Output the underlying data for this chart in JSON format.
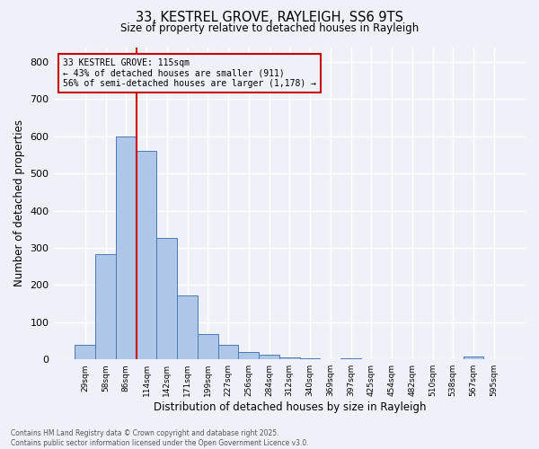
{
  "title1": "33, KESTREL GROVE, RAYLEIGH, SS6 9TS",
  "title2": "Size of property relative to detached houses in Rayleigh",
  "xlabel": "Distribution of detached houses by size in Rayleigh",
  "ylabel": "Number of detached properties",
  "bar_values": [
    38,
    282,
    600,
    560,
    327,
    172,
    68,
    38,
    20,
    12,
    5,
    3,
    0,
    2,
    0,
    0,
    0,
    0,
    0,
    7,
    0
  ],
  "bar_labels": [
    "29sqm",
    "58sqm",
    "86sqm",
    "114sqm",
    "142sqm",
    "171sqm",
    "199sqm",
    "227sqm",
    "256sqm",
    "284sqm",
    "312sqm",
    "340sqm",
    "369sqm",
    "397sqm",
    "425sqm",
    "454sqm",
    "482sqm",
    "510sqm",
    "538sqm",
    "567sqm",
    "595sqm"
  ],
  "bar_color": "#aec6e8",
  "bar_edge_color": "#4a7ab5",
  "vline_x": 3.0,
  "vline_color": "#cc0000",
  "annotation_text": "33 KESTREL GROVE: 115sqm\n← 43% of detached houses are smaller (911)\n56% of semi-detached houses are larger (1,178) →",
  "annotation_box_color": "#cc0000",
  "ylim": [
    0,
    840
  ],
  "yticks": [
    0,
    100,
    200,
    300,
    400,
    500,
    600,
    700,
    800
  ],
  "footer1": "Contains HM Land Registry data © Crown copyright and database right 2025.",
  "footer2": "Contains public sector information licensed under the Open Government Licence v3.0.",
  "bg_color": "#eef2f8",
  "grid_color": "#ffffff"
}
